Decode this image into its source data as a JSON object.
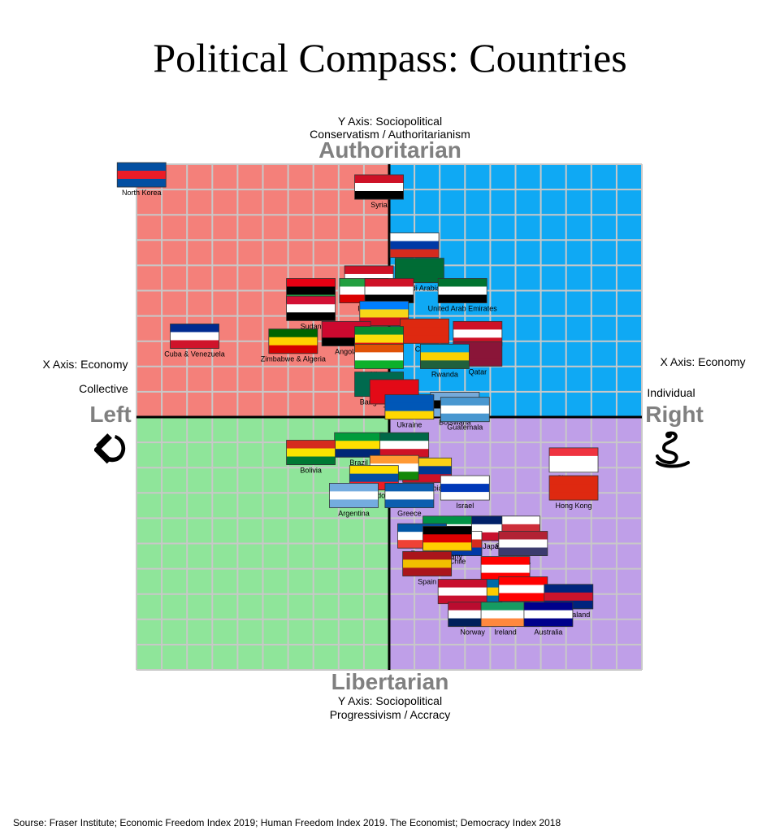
{
  "title": "Political Compass: Countries",
  "source": "Sourse: Fraser Institute; Economic Freedom Index 2019; Human Freedom Index 2019. The Economist; Democracy Index 2018",
  "axes": {
    "top_desc_1": "Y Axis: Sociopolitical",
    "top_desc_2": "Conservatism / Authoritarianism",
    "top_label": "Authoritarian",
    "bottom_label": "Libertarian",
    "bottom_desc_1": "Y Axis: Sociopolitical",
    "bottom_desc_2": "Progressivism / Accracy",
    "left_desc": "X Axis: Economy",
    "left_sub": "Collective",
    "left_label": "Left",
    "right_desc": "X Axis: Economy",
    "right_sub": "Individual",
    "right_label": "Right"
  },
  "icons": {
    "left": "hammer-and-sickle-icon",
    "right": "snake-icon"
  },
  "colors": {
    "auth_left": "#f4807a",
    "auth_right": "#0fa9f4",
    "lib_left": "#8fe59a",
    "lib_right": "#bf9fe8",
    "grid": "#c8c8c8",
    "axis": "#000000"
  },
  "chart_data": {
    "type": "scatter",
    "xlim": [
      -10,
      10
    ],
    "ylim": [
      -10,
      10
    ],
    "grid": true,
    "points": [
      {
        "label": "North Korea",
        "x": -9.8,
        "y": 9.6,
        "colors": [
          "#024fa2",
          "#ed1c27",
          "#024fa2"
        ]
      },
      {
        "label": "Syria",
        "x": -0.4,
        "y": 9.1,
        "colors": [
          "#ce1126",
          "#ffffff",
          "#000000"
        ]
      },
      {
        "label": "Russia",
        "x": 1.0,
        "y": 6.8,
        "colors": [
          "#ffffff",
          "#0039a6",
          "#d52b1e"
        ]
      },
      {
        "label": "Saudi Arabia",
        "x": 1.2,
        "y": 5.8,
        "colors": [
          "#006c35",
          "#006c35",
          "#006c35"
        ]
      },
      {
        "label": "Egypt",
        "x": -0.8,
        "y": 5.5,
        "colors": [
          "#ce1126",
          "#ffffff",
          "#000000"
        ]
      },
      {
        "label": "Libya",
        "x": -3.1,
        "y": 5.0,
        "colors": [
          "#e70013",
          "#000000",
          "#239e46"
        ]
      },
      {
        "label": "Iran",
        "x": -1.0,
        "y": 5.0,
        "colors": [
          "#239f40",
          "#ffffff",
          "#da0000"
        ]
      },
      {
        "label": "Iraq",
        "x": 0.0,
        "y": 5.0,
        "colors": [
          "#ce1126",
          "#ffffff",
          "#000000"
        ]
      },
      {
        "label": "United Arab Emirates",
        "x": 2.9,
        "y": 5.0,
        "colors": [
          "#00732f",
          "#ffffff",
          "#000000"
        ]
      },
      {
        "label": "Sudan",
        "x": -3.1,
        "y": 4.3,
        "colors": [
          "#d21034",
          "#ffffff",
          "#000000"
        ]
      },
      {
        "label": "Congo",
        "x": -0.2,
        "y": 4.1,
        "colors": [
          "#007fff",
          "#f7d618",
          "#ce1021"
        ]
      },
      {
        "label": "China",
        "x": 1.4,
        "y": 3.4,
        "colors": [
          "#de2910",
          "#de2910",
          "#de2910"
        ]
      },
      {
        "label": "Bahrain",
        "x": 3.5,
        "y": 3.3,
        "colors": [
          "#ce1126",
          "#ffffff",
          "#ce1126"
        ]
      },
      {
        "label": "Cuba & Venezuela",
        "x": -7.7,
        "y": 3.2,
        "colors": [
          "#002a8f",
          "#ffffff",
          "#cf142b"
        ]
      },
      {
        "label": "Zimbabwe & Algeria",
        "x": -3.8,
        "y": 3.0,
        "colors": [
          "#006400",
          "#ffd200",
          "#d40000"
        ]
      },
      {
        "label": "Angola",
        "x": -1.7,
        "y": 3.3,
        "colors": [
          "#cc092f",
          "#cc092f",
          "#000000"
        ]
      },
      {
        "label": "Ethiopia",
        "x": -0.4,
        "y": 3.1,
        "colors": [
          "#078930",
          "#fcdd09",
          "#da121a"
        ]
      },
      {
        "label": "Qatar",
        "x": 3.5,
        "y": 2.5,
        "colors": [
          "#8a1538",
          "#8a1538",
          "#8a1538"
        ]
      },
      {
        "label": "Rwanda",
        "x": 2.2,
        "y": 2.4,
        "colors": [
          "#00a1de",
          "#fad201",
          "#20603d"
        ]
      },
      {
        "label": "Niger",
        "x": -0.4,
        "y": 2.4,
        "colors": [
          "#e05206",
          "#ffffff",
          "#0db02b"
        ]
      },
      {
        "label": "Bangladesh",
        "x": -0.4,
        "y": 1.3,
        "colors": [
          "#006a4e",
          "#006a4e",
          "#006a4e"
        ]
      },
      {
        "label": "Turkey",
        "x": 0.2,
        "y": 1.0,
        "colors": [
          "#e30a17",
          "#e30a17",
          "#e30a17"
        ]
      },
      {
        "label": "Botswana",
        "x": 2.6,
        "y": 0.5,
        "colors": [
          "#75aadb",
          "#000000",
          "#75aadb"
        ]
      },
      {
        "label": "Ukraine",
        "x": 0.8,
        "y": 0.4,
        "colors": [
          "#0057b7",
          "#0057b7",
          "#ffd700"
        ]
      },
      {
        "label": "Guatemala",
        "x": 3.0,
        "y": 0.3,
        "colors": [
          "#4997d0",
          "#ffffff",
          "#4997d0"
        ]
      },
      {
        "label": "Brazil",
        "x": -1.2,
        "y": -1.1,
        "colors": [
          "#009c3b",
          "#ffdf00",
          "#002776"
        ]
      },
      {
        "label": "Mexico",
        "x": 0.6,
        "y": -1.1,
        "colors": [
          "#006847",
          "#ffffff",
          "#ce1126"
        ]
      },
      {
        "label": "Bolivia",
        "x": -3.1,
        "y": -1.4,
        "colors": [
          "#d52b1e",
          "#f9e300",
          "#007934"
        ]
      },
      {
        "label": "Singapore",
        "x": 7.3,
        "y": -1.7,
        "colors": [
          "#ef3340",
          "#ffffff",
          "#ffffff"
        ]
      },
      {
        "label": "Colombia",
        "x": 1.5,
        "y": -2.1,
        "colors": [
          "#fcd116",
          "#003893",
          "#ce1126"
        ]
      },
      {
        "label": "India",
        "x": 0.2,
        "y": -2.0,
        "colors": [
          "#ff9933",
          "#ffffff",
          "#138808"
        ]
      },
      {
        "label": "Ecuador",
        "x": -0.6,
        "y": -2.4,
        "colors": [
          "#ffdd00",
          "#034ea2",
          "#ed1c24"
        ]
      },
      {
        "label": "Israel",
        "x": 3.0,
        "y": -2.8,
        "colors": [
          "#ffffff",
          "#0038b8",
          "#ffffff"
        ]
      },
      {
        "label": "Argentina",
        "x": -1.4,
        "y": -3.1,
        "colors": [
          "#74acdf",
          "#ffffff",
          "#74acdf"
        ]
      },
      {
        "label": "Greece",
        "x": 0.8,
        "y": -3.1,
        "colors": [
          "#0d5eaf",
          "#ffffff",
          "#0d5eaf"
        ]
      },
      {
        "label": "Hong Kong",
        "x": 7.3,
        "y": -2.8,
        "colors": [
          "#de2910",
          "#de2910",
          "#de2910"
        ]
      },
      {
        "label": "Japan",
        "x": 4.1,
        "y": -4.4,
        "colors": [
          "#ffffff",
          "#bc002d",
          "#ffffff"
        ]
      },
      {
        "label": "South Korea",
        "x": 5.0,
        "y": -4.4,
        "colors": [
          "#ffffff",
          "#cd2e3a",
          "#0047a0"
        ]
      },
      {
        "label": "UK",
        "x": 3.5,
        "y": -4.4,
        "colors": [
          "#012169",
          "#ffffff",
          "#c8102e"
        ]
      },
      {
        "label": "Italy",
        "x": 2.3,
        "y": -4.4,
        "colors": [
          "#009246",
          "#ffffff",
          "#ce2b37"
        ]
      },
      {
        "label": "France",
        "x": 1.3,
        "y": -4.7,
        "colors": [
          "#0055a4",
          "#ffffff",
          "#ef4135"
        ]
      },
      {
        "label": "USA",
        "x": 5.3,
        "y": -5.0,
        "colors": [
          "#b22234",
          "#ffffff",
          "#3c3b6e"
        ]
      },
      {
        "label": "Chile",
        "x": 2.7,
        "y": -5.0,
        "colors": [
          "#ffffff",
          "#d52b1e",
          "#0039a6"
        ]
      },
      {
        "label": "Germany",
        "x": 2.3,
        "y": -4.8,
        "colors": [
          "#000000",
          "#dd0000",
          "#ffce00"
        ]
      },
      {
        "label": "Spain",
        "x": 1.5,
        "y": -5.8,
        "colors": [
          "#aa151b",
          "#f1bf00",
          "#aa151b"
        ]
      },
      {
        "label": "Canada",
        "x": 4.6,
        "y": -6.0,
        "colors": [
          "#ff0000",
          "#ffffff",
          "#ff0000"
        ]
      },
      {
        "label": "Sweden",
        "x": 3.5,
        "y": -6.9,
        "colors": [
          "#006aa7",
          "#fecc00",
          "#006aa7"
        ]
      },
      {
        "label": "Denmark",
        "x": 2.9,
        "y": -6.9,
        "colors": [
          "#c8102e",
          "#ffffff",
          "#c8102e"
        ]
      },
      {
        "label": "Switzerland",
        "x": 5.3,
        "y": -6.8,
        "colors": [
          "#ff0000",
          "#ffffff",
          "#ff0000"
        ]
      },
      {
        "label": "New Zealand",
        "x": 7.1,
        "y": -7.1,
        "colors": [
          "#00247d",
          "#cc142b",
          "#00247d"
        ]
      },
      {
        "label": "Norway",
        "x": 3.3,
        "y": -7.8,
        "colors": [
          "#ba0c2f",
          "#ffffff",
          "#00205b"
        ]
      },
      {
        "label": "Ireland",
        "x": 4.6,
        "y": -7.8,
        "colors": [
          "#169b62",
          "#ffffff",
          "#ff883e"
        ]
      },
      {
        "label": "Australia",
        "x": 6.3,
        "y": -7.8,
        "colors": [
          "#00008b",
          "#ffffff",
          "#00008b"
        ]
      }
    ]
  }
}
